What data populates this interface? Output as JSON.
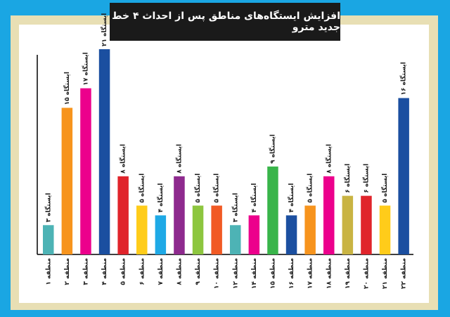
{
  "chart_data": {
    "type": "bar",
    "title": "افزایش ایستگاه‌های مناطق پس از احداث ۴ خط جدید مترو",
    "categories": [
      "منطقه ۱",
      "منطقه ۲",
      "منطقه ۳",
      "منطقه ۴",
      "منطقه ۵",
      "منطقه ۶",
      "منطقه ۷",
      "منطقه ۸",
      "منطقه ۹",
      "منطقه ۱۰",
      "منطقه ۱۲",
      "منطقه ۱۴",
      "منطقه ۱۵",
      "منطقه ۱۶",
      "منطقه ۱۷",
      "منطقه ۱۸",
      "منطقه ۱۹",
      "منطقه ۲۰",
      "منطقه ۲۱",
      "منطقه ۲۲"
    ],
    "values": [
      3,
      15,
      17,
      21,
      8,
      5,
      4,
      8,
      5,
      5,
      3,
      4,
      9,
      4,
      5,
      8,
      6,
      6,
      5,
      16
    ],
    "data_labels": [
      "۳ ایستگاه",
      "۱۵ ایستگاه",
      "۱۷ ایستگاه",
      "۲۱ ایستگاه",
      "۸ ایستگاه",
      "۵ ایستگاه",
      "۴ ایستگاه",
      "۸ ایستگاه",
      "۵ ایستگاه",
      "۵ ایستگاه",
      "۳ ایستگاه",
      "۴ ایستگاه",
      "۹ ایستگاه",
      "۴ ایستگاه",
      "۵ ایستگاه",
      "۸ ایستگاه",
      "۶ ایستگاه",
      "۶ ایستگاه",
      "۵ ایستگاه",
      "۱۶ ایستگاه"
    ],
    "colors": [
      "#4db3b5",
      "#f7941d",
      "#ec008c",
      "#1b4fa0",
      "#e0242b",
      "#ffcc1a",
      "#1ea9e6",
      "#8e2a8e",
      "#8dc63f",
      "#f15a24",
      "#4db3b5",
      "#ec008c",
      "#39b54a",
      "#1b4fa0",
      "#f7941d",
      "#ec008c",
      "#c9b443",
      "#e0242b",
      "#ffcc1a",
      "#1b4fa0"
    ],
    "ylim": [
      0,
      21
    ],
    "grid": false,
    "xlabel": "",
    "ylabel": ""
  }
}
